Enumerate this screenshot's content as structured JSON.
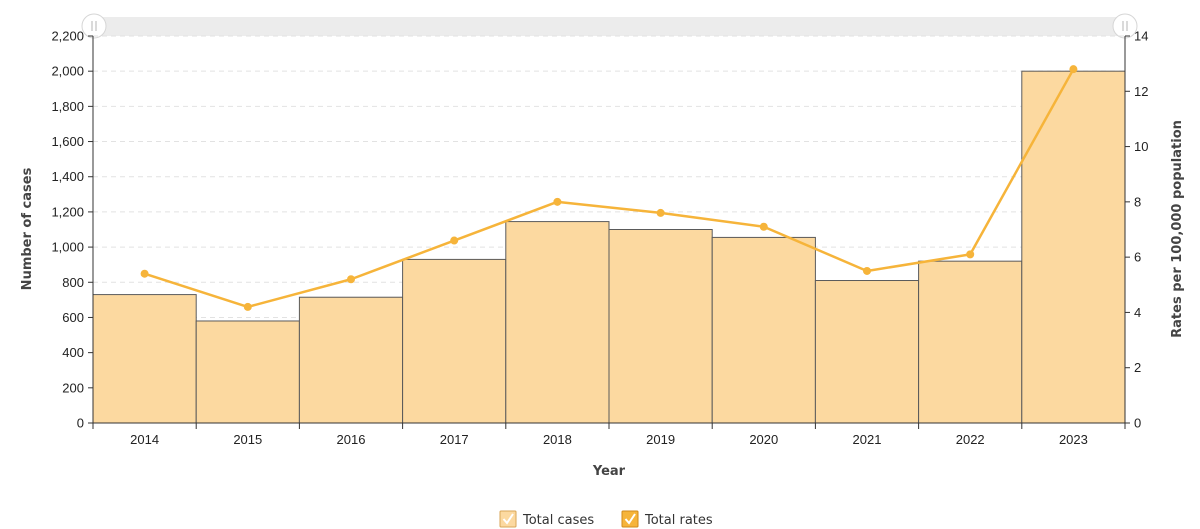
{
  "chart_data": {
    "type": "bar",
    "categories": [
      "2014",
      "2015",
      "2016",
      "2017",
      "2018",
      "2019",
      "2020",
      "2021",
      "2022",
      "2023"
    ],
    "series": [
      {
        "name": "Total cases",
        "type": "bar",
        "axis": "left",
        "values": [
          730,
          580,
          715,
          930,
          1145,
          1100,
          1055,
          810,
          920,
          2000
        ]
      },
      {
        "name": "Total rates",
        "type": "line",
        "axis": "right",
        "values": [
          5.4,
          4.2,
          5.2,
          6.6,
          8.0,
          7.6,
          7.1,
          5.5,
          6.1,
          12.8
        ]
      }
    ],
    "title": "",
    "xlabel": "Year",
    "ylabel": "Number of cases",
    "y2label": "Rates per 100,000 population",
    "ylim": [
      0,
      2200
    ],
    "y2lim": [
      0,
      14
    ],
    "yticks": [
      "0",
      "200",
      "400",
      "600",
      "800",
      "1,000",
      "1,200",
      "1,400",
      "1,600",
      "1,800",
      "2,000",
      "2,200"
    ],
    "y2ticks": [
      "0",
      "2",
      "4",
      "6",
      "8",
      "10",
      "12",
      "14"
    ],
    "grid": true,
    "legend": "bottom-center"
  },
  "colors": {
    "bar_fill": "#fcd9a0",
    "bar_stroke": "#5a5a5a",
    "line": "#f6b43a",
    "grid": "#e2e2e2",
    "navigator": "#ececec",
    "legend_line_box": "#f6a623"
  }
}
